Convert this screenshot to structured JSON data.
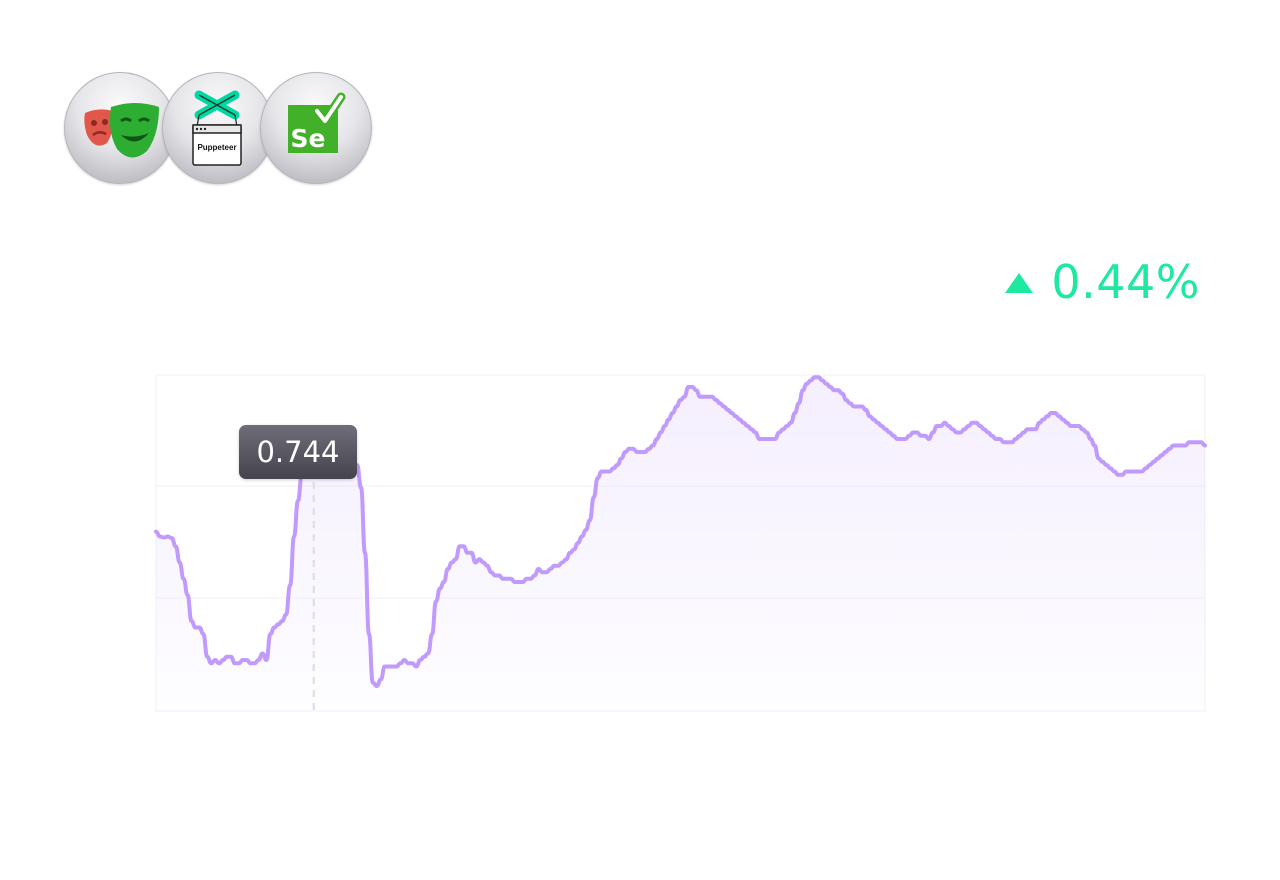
{
  "logos": [
    {
      "icon": "playwright-masks-icon"
    },
    {
      "icon": "puppeteer-icon",
      "label": "Puppeteer"
    },
    {
      "icon": "selenium-icon",
      "label": "Se"
    }
  ],
  "change": {
    "value": "0.44%",
    "direction": "up",
    "color": "#1de9a0"
  },
  "tooltip": {
    "value": "0.744",
    "index": 40
  },
  "chart_data": {
    "type": "area",
    "title": "",
    "xlabel": "",
    "ylabel": "",
    "ylim": [
      0,
      1
    ],
    "grid": true,
    "line_color": "#c09afc",
    "values": [
      0.515,
      0.5,
      0.497,
      0.5,
      0.495,
      0.47,
      0.42,
      0.37,
      0.32,
      0.24,
      0.22,
      0.22,
      0.2,
      0.13,
      0.11,
      0.12,
      0.11,
      0.12,
      0.13,
      0.13,
      0.11,
      0.11,
      0.12,
      0.12,
      0.11,
      0.11,
      0.12,
      0.14,
      0.12,
      0.2,
      0.22,
      0.23,
      0.24,
      0.26,
      0.35,
      0.5,
      0.61,
      0.69,
      0.72,
      0.735,
      0.744,
      0.72,
      0.72,
      0.72,
      0.72,
      0.72,
      0.72,
      0.72,
      0.72,
      0.72,
      0.72,
      0.72,
      0.65,
      0.45,
      0.2,
      0.05,
      0.04,
      0.06,
      0.1,
      0.1,
      0.1,
      0.1,
      0.11,
      0.12,
      0.11,
      0.11,
      0.1,
      0.12,
      0.13,
      0.14,
      0.2,
      0.3,
      0.34,
      0.36,
      0.4,
      0.42,
      0.43,
      0.47,
      0.47,
      0.45,
      0.45,
      0.42,
      0.43,
      0.42,
      0.41,
      0.39,
      0.38,
      0.38,
      0.37,
      0.37,
      0.37,
      0.36,
      0.36,
      0.36,
      0.37,
      0.37,
      0.38,
      0.4,
      0.39,
      0.39,
      0.4,
      0.41,
      0.41,
      0.42,
      0.43,
      0.45,
      0.46,
      0.48,
      0.5,
      0.52,
      0.55,
      0.62,
      0.68,
      0.7,
      0.7,
      0.7,
      0.71,
      0.72,
      0.74,
      0.76,
      0.77,
      0.77,
      0.76,
      0.76,
      0.76,
      0.77,
      0.78,
      0.8,
      0.82,
      0.84,
      0.86,
      0.88,
      0.9,
      0.92,
      0.93,
      0.96,
      0.96,
      0.95,
      0.93,
      0.93,
      0.93,
      0.93,
      0.92,
      0.91,
      0.9,
      0.89,
      0.88,
      0.87,
      0.86,
      0.85,
      0.84,
      0.83,
      0.82,
      0.8,
      0.8,
      0.8,
      0.8,
      0.8,
      0.82,
      0.83,
      0.84,
      0.85,
      0.88,
      0.91,
      0.95,
      0.97,
      0.98,
      0.99,
      0.99,
      0.98,
      0.97,
      0.96,
      0.95,
      0.95,
      0.94,
      0.92,
      0.91,
      0.9,
      0.9,
      0.9,
      0.89,
      0.87,
      0.86,
      0.85,
      0.84,
      0.83,
      0.82,
      0.81,
      0.8,
      0.8,
      0.8,
      0.81,
      0.82,
      0.82,
      0.81,
      0.81,
      0.8,
      0.82,
      0.84,
      0.84,
      0.85,
      0.84,
      0.83,
      0.82,
      0.82,
      0.83,
      0.84,
      0.85,
      0.85,
      0.84,
      0.83,
      0.82,
      0.81,
      0.8,
      0.8,
      0.79,
      0.79,
      0.79,
      0.8,
      0.81,
      0.82,
      0.83,
      0.83,
      0.83,
      0.85,
      0.86,
      0.87,
      0.88,
      0.88,
      0.87,
      0.86,
      0.85,
      0.84,
      0.84,
      0.84,
      0.83,
      0.82,
      0.8,
      0.78,
      0.74,
      0.73,
      0.72,
      0.71,
      0.7,
      0.69,
      0.69,
      0.7,
      0.7,
      0.7,
      0.7,
      0.7,
      0.71,
      0.72,
      0.73,
      0.74,
      0.75,
      0.76,
      0.77,
      0.78,
      0.78,
      0.78,
      0.78,
      0.79,
      0.79,
      0.79,
      0.79,
      0.78
    ]
  }
}
